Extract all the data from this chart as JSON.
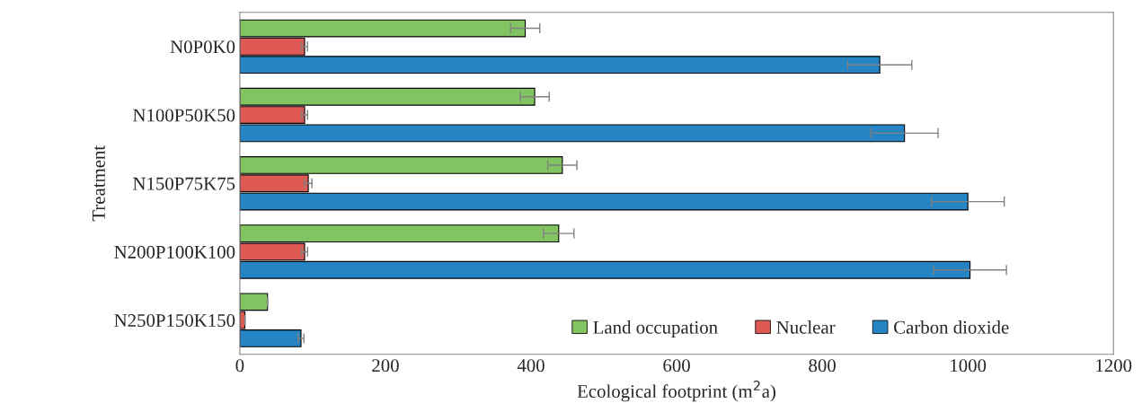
{
  "chart_data": {
    "type": "bar",
    "orientation": "horizontal",
    "xlabel": "Ecological footprint (m$^{2}$a)",
    "ylabel": "Treatment",
    "categories": [
      "N0P0K0",
      "N100P50K50",
      "N150P75K75",
      "N200P100K100",
      "N250P150K150"
    ],
    "series": [
      {
        "name": "Land occupation",
        "color": "#82c462",
        "values": [
          392,
          405,
          443,
          438,
          38
        ],
        "errors": [
          20,
          20,
          20,
          21,
          null
        ]
      },
      {
        "name": "Nuclear",
        "color": "#e05a55",
        "values": [
          89,
          89,
          94,
          89,
          7
        ],
        "errors": [
          4,
          4,
          5,
          4,
          null
        ]
      },
      {
        "name": "Carbon dioxide",
        "color": "#2584c4",
        "values": [
          879,
          913,
          1000,
          1003,
          84
        ],
        "errors": [
          44,
          46,
          50,
          50,
          4
        ]
      }
    ],
    "xlim": [
      0,
      1200
    ],
    "xticks": [
      0,
      200,
      400,
      600,
      800,
      1000,
      1200
    ],
    "grid": false,
    "legend": "bottom right"
  }
}
